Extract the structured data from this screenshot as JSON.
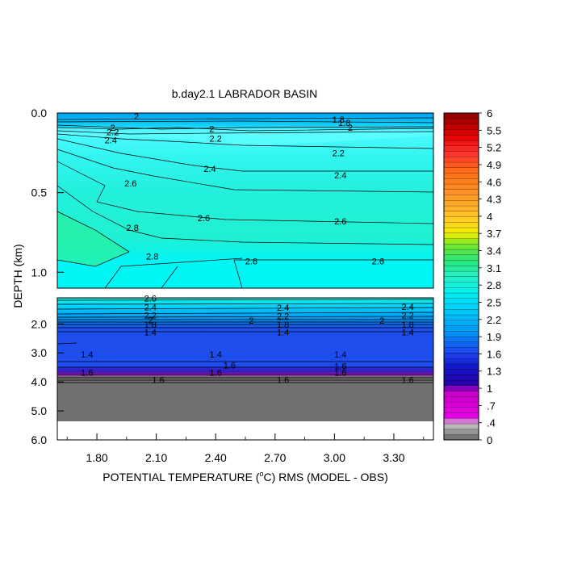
{
  "chart_data": {
    "type": "contour",
    "title": "b.day2.1 LABRADOR BASIN",
    "xlabel": "POTENTIAL TEMPERATURE (",
    "xlabel_unit": "o",
    "xlabel_rest": "C) RMS (MODEL - OBS)",
    "ylabel": "DEPTH (km)",
    "xlim": [
      1.6,
      3.5
    ],
    "x_ticks": [
      "1.80",
      "2.10",
      "2.40",
      "2.70",
      "3.00",
      "3.30"
    ],
    "y_ticks_top": [
      "0.0",
      "0.5",
      "1.0"
    ],
    "y_ticks_bottom": [
      "2.0",
      "3.0",
      "4.0",
      "5.0",
      "6.0"
    ],
    "ylim_top": [
      0,
      1.1
    ],
    "ylim_bottom": [
      1.1,
      6.0
    ],
    "colorbar": {
      "min": 0,
      "max": 6,
      "step": 0.1,
      "labels": [
        "6",
        "5.5",
        "5.2",
        "4.9",
        "4.6",
        "4.3",
        "4",
        "3.7",
        "3.4",
        "3.1",
        "2.8",
        "2.5",
        "2.2",
        "1.9",
        "1.6",
        "1.3",
        "1",
        ".7",
        ".4",
        "0"
      ]
    },
    "contour_labels_top": [
      {
        "text": "2",
        "x": 2.0,
        "y": 0.02
      },
      {
        "text": "1.8",
        "x": 3.02,
        "y": 0.04
      },
      {
        "text": "1.8",
        "x": 3.05,
        "y": 0.06
      },
      {
        "text": "2",
        "x": 3.08,
        "y": 0.09
      },
      {
        "text": "2",
        "x": 1.88,
        "y": 0.09
      },
      {
        "text": "2",
        "x": 2.38,
        "y": 0.1
      },
      {
        "text": "2.2",
        "x": 1.88,
        "y": 0.12
      },
      {
        "text": "2.4",
        "x": 1.87,
        "y": 0.17
      },
      {
        "text": "2.2",
        "x": 2.4,
        "y": 0.16
      },
      {
        "text": "2.2",
        "x": 3.02,
        "y": 0.25
      },
      {
        "text": "2.4",
        "x": 2.37,
        "y": 0.35
      },
      {
        "text": "2.4",
        "x": 3.03,
        "y": 0.39
      },
      {
        "text": "2.6",
        "x": 1.97,
        "y": 0.44
      },
      {
        "text": "2.6",
        "x": 2.34,
        "y": 0.66
      },
      {
        "text": "2.6",
        "x": 3.03,
        "y": 0.68
      },
      {
        "text": "2.8",
        "x": 1.98,
        "y": 0.72
      },
      {
        "text": "2.8",
        "x": 2.08,
        "y": 0.9
      },
      {
        "text": "2.6",
        "x": 2.58,
        "y": 0.93
      },
      {
        "text": "2.6",
        "x": 3.22,
        "y": 0.93
      }
    ],
    "contour_labels_bottom": [
      {
        "text": "2.6",
        "x": 2.07,
        "y": 1.11
      },
      {
        "text": "2.4",
        "x": 2.07,
        "y": 1.42
      },
      {
        "text": "2.4",
        "x": 2.74,
        "y": 1.43
      },
      {
        "text": "2.4",
        "x": 3.37,
        "y": 1.4
      },
      {
        "text": "2.2",
        "x": 2.07,
        "y": 1.7
      },
      {
        "text": "2.2",
        "x": 2.74,
        "y": 1.72
      },
      {
        "text": "2.2",
        "x": 3.37,
        "y": 1.7
      },
      {
        "text": "2",
        "x": 2.07,
        "y": 1.86
      },
      {
        "text": "2",
        "x": 2.58,
        "y": 1.88
      },
      {
        "text": "2",
        "x": 3.24,
        "y": 1.88
      },
      {
        "text": "1.8",
        "x": 2.07,
        "y": 2.02
      },
      {
        "text": "1.8",
        "x": 2.74,
        "y": 2.02
      },
      {
        "text": "1.8",
        "x": 3.37,
        "y": 2.02
      },
      {
        "text": "1.4",
        "x": 2.07,
        "y": 2.28
      },
      {
        "text": "1.4",
        "x": 2.74,
        "y": 2.28
      },
      {
        "text": "1.4",
        "x": 3.37,
        "y": 2.28
      },
      {
        "text": "1.4",
        "x": 1.75,
        "y": 3.05
      },
      {
        "text": "1.4",
        "x": 2.4,
        "y": 3.05
      },
      {
        "text": "1.4",
        "x": 3.03,
        "y": 3.05
      },
      {
        "text": "1.6",
        "x": 2.47,
        "y": 3.42
      },
      {
        "text": "1.6",
        "x": 3.03,
        "y": 3.45
      },
      {
        "text": "1.6",
        "x": 1.75,
        "y": 3.68
      },
      {
        "text": "1.6",
        "x": 2.4,
        "y": 3.68
      },
      {
        "text": "1.6",
        "x": 3.03,
        "y": 3.68
      },
      {
        "text": "1.6",
        "x": 2.11,
        "y": 3.92
      },
      {
        "text": "1.6",
        "x": 2.74,
        "y": 3.92
      },
      {
        "text": "1.6",
        "x": 3.37,
        "y": 3.92
      }
    ]
  }
}
